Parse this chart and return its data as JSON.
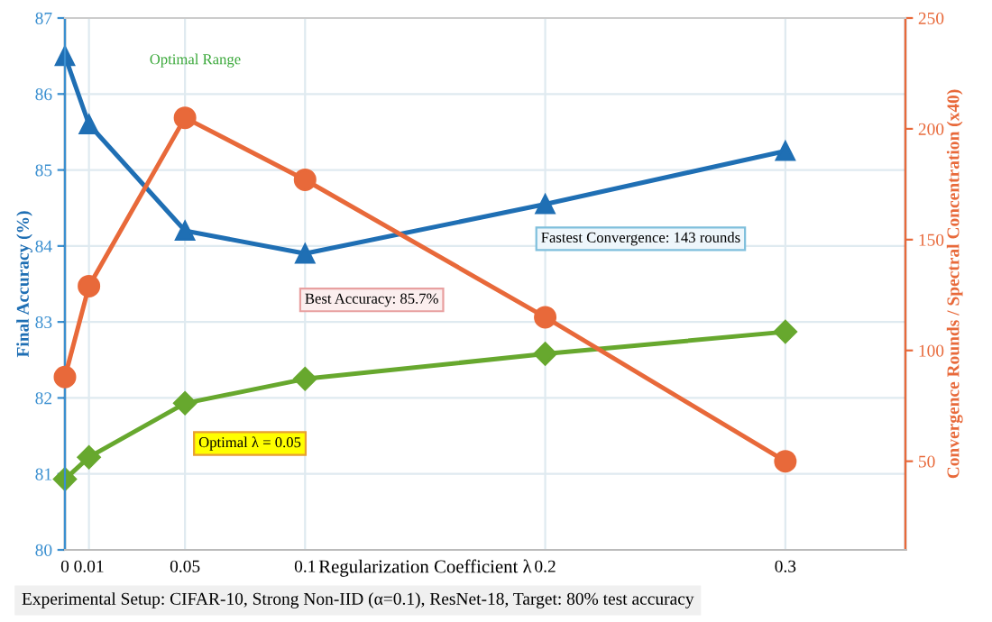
{
  "chart_data": {
    "type": "line",
    "xlabel": "Regularization Coefficient λ",
    "ylabel": "Final Accuracy (%)",
    "y2label": "Convergence Rounds / Spectral Concentration (x40)",
    "x": [
      0,
      0.01,
      0.05,
      0.1,
      0.2,
      0.3
    ],
    "xlim": [
      0,
      0.35
    ],
    "xticks": [
      0,
      0.01,
      0.05,
      0.1,
      0.2,
      0.3
    ],
    "ylim": [
      80,
      87
    ],
    "yticks": [
      80,
      81,
      82,
      83,
      84,
      85,
      86,
      87
    ],
    "y2lim": [
      10,
      250
    ],
    "y2ticks": [
      50,
      100,
      150,
      200,
      250
    ],
    "grid": true,
    "line_style": "solid",
    "series": [
      {
        "color": "#1f6fb4",
        "marker": "triangle",
        "values": [
          86.5,
          85.6,
          84.2,
          83.9,
          84.55,
          85.25
        ]
      },
      {
        "color": "#e8693a",
        "marker": "circle",
        "axis": "y2",
        "values": [
          88,
          129,
          205,
          177,
          115,
          50
        ]
      },
      {
        "color": "#67a82e",
        "marker": "diamond",
        "values": [
          80.93,
          81.22,
          81.93,
          82.25,
          82.58,
          82.87
        ]
      }
    ],
    "annotations": [
      "Optimal Range",
      "Best Accuracy: 85.7%",
      "Fastest Convergence: 143 rounds",
      "Optimal λ = 0.05",
      "Experimental Setup: CIFAR-10, Strong Non-IID (α=0.1), ResNet-18, Target: 80% test accuracy"
    ]
  }
}
